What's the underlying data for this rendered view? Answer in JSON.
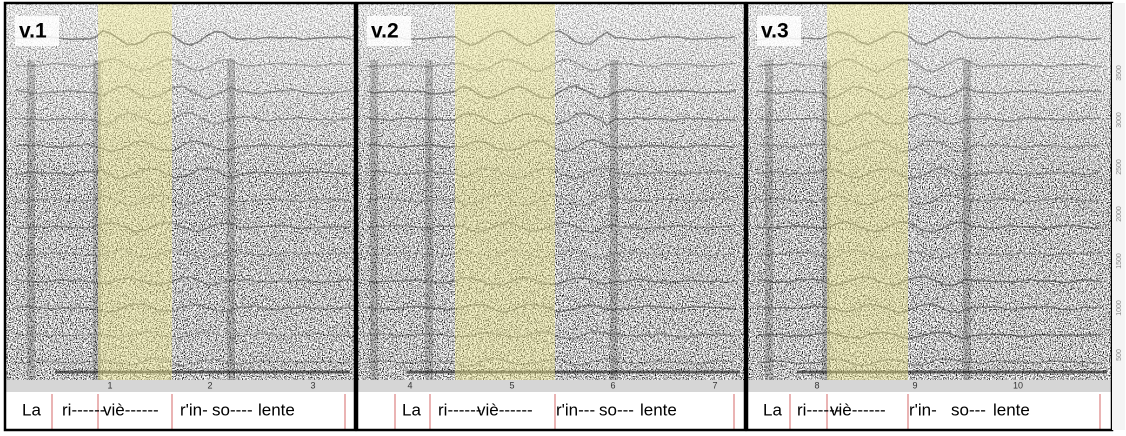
{
  "panels": [
    {
      "label": "v.1",
      "time_ticks": [
        "1",
        "2",
        "3"
      ],
      "lyrics": [
        "La",
        "ri------",
        "viè------",
        "r'in-",
        "so----",
        "lente"
      ]
    },
    {
      "label": "v.2",
      "time_ticks": [
        "4",
        "5",
        "6",
        "7"
      ],
      "lyrics": [
        "La",
        "ri------",
        "viè------",
        "r'in---",
        "so---",
        "lente"
      ]
    },
    {
      "label": "v.3",
      "time_ticks": [
        "8",
        "9",
        "10"
      ],
      "lyrics": [
        "La",
        "ri------",
        "viè------",
        "r'in-",
        "so---",
        "lente"
      ]
    }
  ],
  "frequency_axis": [
    "500",
    "1000",
    "1500",
    "2000",
    "2500",
    "3000",
    "3500"
  ]
}
